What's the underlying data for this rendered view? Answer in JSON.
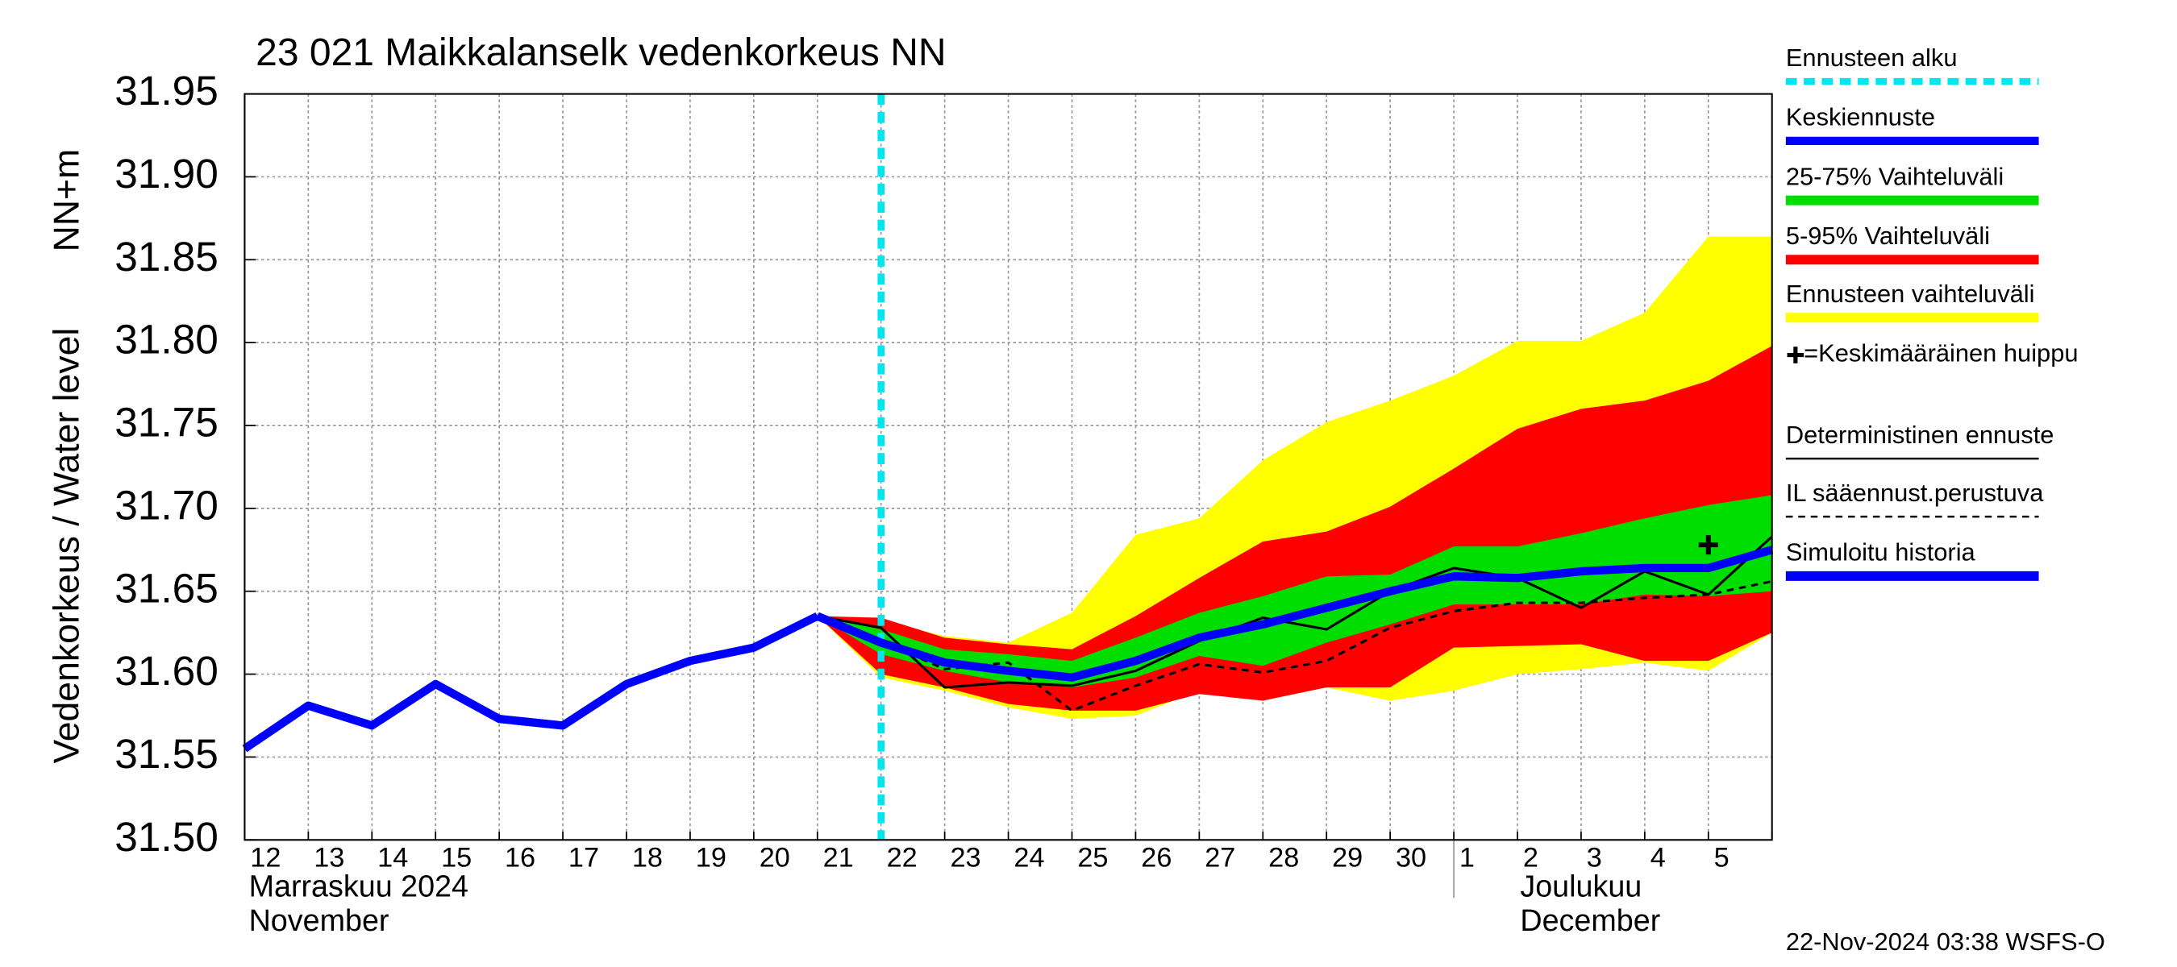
{
  "chart_data": {
    "type": "line",
    "title": "23 021 Maikkalanselk vedenkorkeus NN",
    "y_label": "Vedenkorkeus / Water level",
    "y_unit": "NN+m",
    "categories": [
      "12",
      "13",
      "14",
      "15",
      "16",
      "17",
      "18",
      "19",
      "20",
      "21",
      "22",
      "23",
      "24",
      "25",
      "26",
      "27",
      "28",
      "29",
      "30",
      "1",
      "2",
      "3",
      "4",
      "5",
      null
    ],
    "months": [
      {
        "name": "Marraskuu 2024",
        "name_en": "November"
      },
      {
        "name": "Joulukuu",
        "name_en": "December",
        "start": "1"
      }
    ],
    "ylim": [
      31.5,
      31.95
    ],
    "yticks": [
      {
        "value": 31.5,
        "label": "31.50"
      },
      {
        "value": 31.55,
        "label": "31.55"
      },
      {
        "value": 31.6,
        "label": "31.60"
      },
      {
        "value": 31.65,
        "label": "31.65"
      },
      {
        "value": 31.7,
        "label": "31.70"
      },
      {
        "value": 31.75,
        "label": "31.75"
      },
      {
        "value": 31.8,
        "label": "31.80"
      },
      {
        "value": 31.85,
        "label": "31.85"
      },
      {
        "value": 31.9,
        "label": "31.90"
      },
      {
        "value": 31.95,
        "label": "31.95"
      }
    ],
    "grid": true,
    "forecast_start": {
      "name": "Ennusteen alku",
      "category": "22",
      "color": "#00e5ee"
    },
    "bands": [
      {
        "name": "Ennusteen vaihteluväli",
        "color": "#ffff00",
        "lower": [
          null,
          null,
          null,
          null,
          null,
          null,
          null,
          null,
          null,
          31.635,
          31.598,
          31.59,
          31.58,
          31.573,
          31.575,
          31.59,
          31.584,
          31.592,
          31.584,
          31.59,
          31.6,
          31.603,
          31.607,
          31.602,
          31.625
        ],
        "upper": [
          null,
          null,
          null,
          null,
          null,
          null,
          null,
          null,
          null,
          31.635,
          31.632,
          31.623,
          31.619,
          31.637,
          31.684,
          31.694,
          31.729,
          31.752,
          31.765,
          31.78,
          31.801,
          31.801,
          31.818,
          31.864,
          31.864
        ]
      },
      {
        "name": "5-95% Vaihteluväli",
        "color": "#ff0000",
        "lower": [
          null,
          null,
          null,
          null,
          null,
          null,
          null,
          null,
          null,
          31.635,
          31.6,
          31.592,
          31.582,
          31.578,
          31.578,
          31.588,
          31.584,
          31.592,
          31.592,
          31.616,
          31.617,
          31.618,
          31.608,
          31.608,
          31.625
        ],
        "upper": [
          null,
          null,
          null,
          null,
          null,
          null,
          null,
          null,
          null,
          31.635,
          31.634,
          31.622,
          31.618,
          31.615,
          31.635,
          31.658,
          31.68,
          31.686,
          31.701,
          31.724,
          31.748,
          31.76,
          31.765,
          31.777,
          31.798
        ]
      },
      {
        "name": "25-75% Vaihteluväli",
        "color": "#00dd00",
        "lower": [
          null,
          null,
          null,
          null,
          null,
          null,
          null,
          null,
          null,
          31.635,
          31.612,
          31.602,
          31.595,
          31.592,
          31.598,
          31.611,
          31.605,
          31.619,
          31.63,
          31.642,
          31.642,
          31.642,
          31.648,
          31.647,
          31.65
        ],
        "upper": [
          null,
          null,
          null,
          null,
          null,
          null,
          null,
          null,
          null,
          31.635,
          31.627,
          31.615,
          31.612,
          31.608,
          31.622,
          31.637,
          31.647,
          31.659,
          31.66,
          31.677,
          31.677,
          31.685,
          31.694,
          31.702,
          31.708
        ]
      }
    ],
    "series": [
      {
        "name": "IL sääennust.perustuva",
        "color": "#000000",
        "style": "dashed",
        "values": [
          null,
          null,
          null,
          null,
          null,
          null,
          null,
          null,
          null,
          31.635,
          31.62,
          31.603,
          31.607,
          31.578,
          31.593,
          31.606,
          31.601,
          31.608,
          31.628,
          31.638,
          31.643,
          31.643,
          31.646,
          31.648,
          31.656
        ]
      },
      {
        "name": "Deterministinen ennuste",
        "color": "#000000",
        "style": "thin",
        "values": [
          null,
          null,
          null,
          null,
          null,
          null,
          null,
          null,
          null,
          31.635,
          31.628,
          31.592,
          31.595,
          31.593,
          31.602,
          31.62,
          31.634,
          31.627,
          31.65,
          31.664,
          31.658,
          31.64,
          31.662,
          31.648,
          31.683
        ]
      },
      {
        "name": "Keskiennuste",
        "color": "#0000ff",
        "style": "thick",
        "values": [
          null,
          null,
          null,
          null,
          null,
          null,
          null,
          null,
          null,
          31.635,
          31.619,
          31.607,
          31.602,
          31.598,
          31.608,
          31.622,
          31.63,
          31.64,
          31.65,
          31.659,
          31.658,
          31.662,
          31.664,
          31.664,
          31.675
        ]
      },
      {
        "name": "Simuloitu historia",
        "color": "#0000ff",
        "style": "thick",
        "values": [
          31.555,
          31.581,
          31.569,
          31.594,
          31.573,
          31.569,
          31.594,
          31.608,
          31.616,
          31.635,
          null,
          null,
          null,
          null,
          null,
          null,
          null,
          null,
          null,
          null,
          null,
          null,
          null,
          null,
          null
        ]
      }
    ],
    "peak": {
      "name": "=Keskimääräinen huippu",
      "category": "5",
      "value": 31.678,
      "color": "#000000"
    },
    "timestamp": "22-Nov-2024 03:38 WSFS-O"
  }
}
